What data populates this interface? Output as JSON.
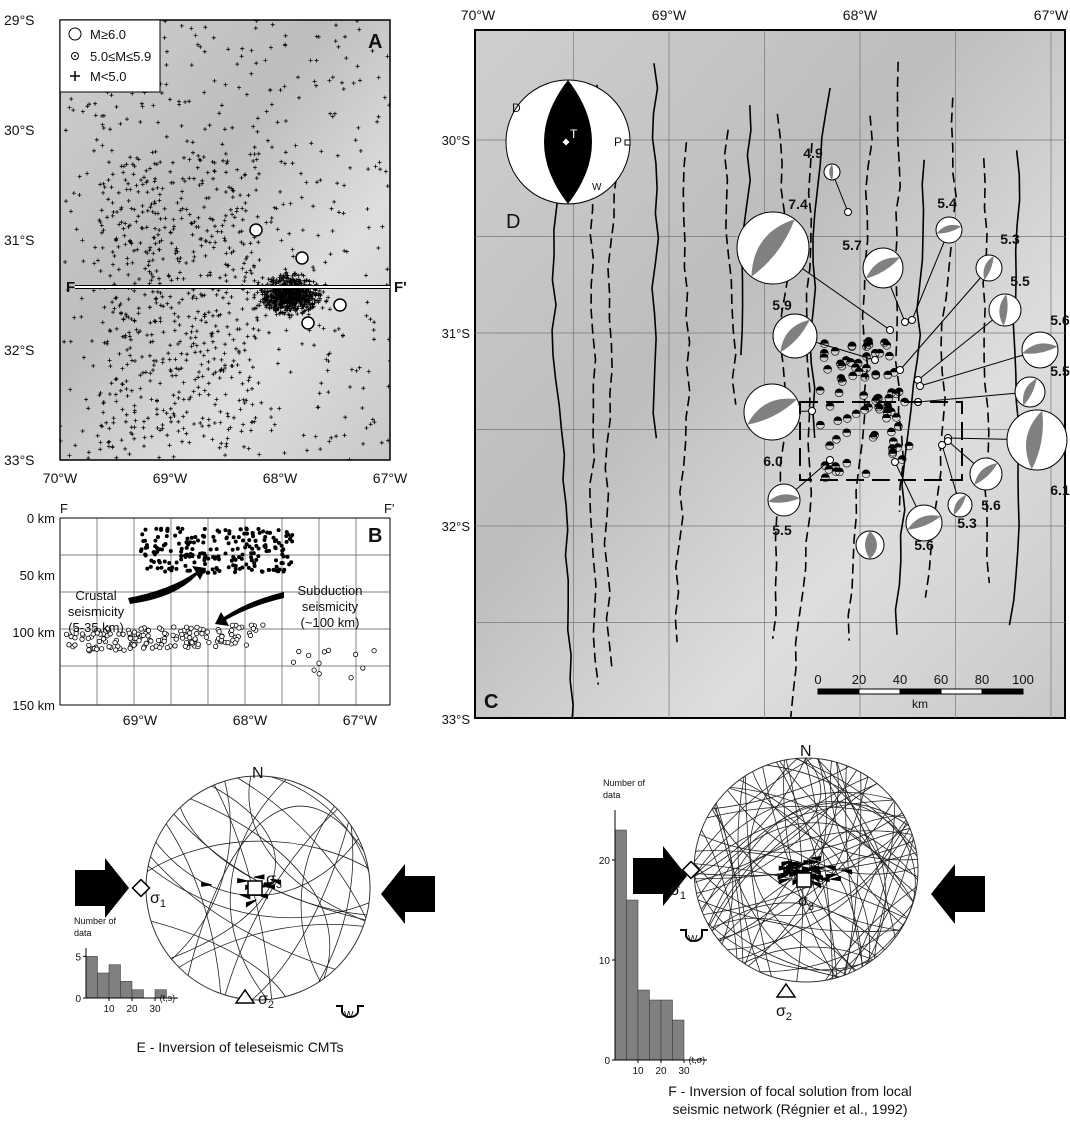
{
  "panel_a": {
    "label": "A",
    "lat_labels": [
      "29°S",
      "30°S",
      "31°S",
      "32°S",
      "33°S"
    ],
    "lon_labels": [
      "70°W",
      "69°W",
      "68°W",
      "67°W"
    ],
    "legend": [
      "M≥6.0",
      "5.0≤M≤5.9",
      "M<5.0"
    ],
    "section_start": "F",
    "section_end": "F'"
  },
  "panel_b": {
    "label": "B",
    "section_start": "F",
    "section_end": "F'",
    "depth_labels": [
      "0 km",
      "50 km",
      "100 km",
      "150 km"
    ],
    "lon_labels": [
      "69°W",
      "68°W",
      "67°W"
    ],
    "annotations": [
      [
        "Crustal",
        "seismicity",
        "(5-35 km)"
      ],
      [
        "Subduction",
        "seismicity",
        "(~100 km)"
      ]
    ]
  },
  "panel_c": {
    "label": "C",
    "lon_labels": [
      "70°W",
      "69°W",
      "68°W",
      "67°W"
    ],
    "lat_labels": [
      "30°S",
      "31°S",
      "32°S",
      "33°S"
    ],
    "inset_labels": {
      "d": "D",
      "t": "T",
      "p": "P",
      "w": "W"
    },
    "map_label": "D",
    "magnitudes": [
      "4.9",
      "7.4",
      "5.4",
      "5.3",
      "5.7",
      "5.5",
      "5.9",
      "5.6",
      "5.5",
      "6.0",
      "6.1",
      "5.6",
      "5.5",
      "5.3",
      "5.6"
    ],
    "scale_ticks": [
      "0",
      "20",
      "40",
      "60",
      "80",
      "100"
    ],
    "scale_unit": "km"
  },
  "panel_e": {
    "north": "N",
    "sigma1": {
      "symbol": "σ",
      "sub": "1"
    },
    "sigma2": {
      "symbol": "σ",
      "sub": "2"
    },
    "sigma3": {
      "symbol": "σ",
      "sub": "3"
    },
    "w_symbol": "W",
    "histogram": {
      "y_title": [
        "Number of",
        "data"
      ],
      "bins": [
        0,
        5,
        10,
        15,
        20,
        25,
        30,
        35
      ],
      "counts": [
        5,
        3,
        4,
        2,
        1,
        0,
        1
      ],
      "xlim": [
        0,
        40
      ],
      "ylim": [
        0,
        6
      ],
      "xticks": [
        10,
        20,
        30
      ],
      "yticks": [
        0,
        5
      ],
      "x_title": "(t,s)",
      "color": "#808080"
    },
    "caption": [
      "E - Inversion of teleseismic CMTs"
    ]
  },
  "panel_f": {
    "north": "N",
    "sigma1": {
      "symbol": "σ",
      "sub": "1"
    },
    "sigma2": {
      "symbol": "σ",
      "sub": "2"
    },
    "sigma3": {
      "symbol": "σ",
      "sub": "3"
    },
    "w_symbol": "W",
    "histogram": {
      "y_title": [
        "Number of",
        "data"
      ],
      "bins": [
        0,
        5,
        10,
        15,
        20,
        25,
        30
      ],
      "counts": [
        23,
        16,
        7,
        6,
        6,
        4
      ],
      "xlim": [
        0,
        40
      ],
      "ylim": [
        0,
        25
      ],
      "xticks": [
        10,
        20,
        30
      ],
      "yticks": [
        0,
        10,
        20
      ],
      "x_title": "(t,σ)",
      "color": "#808080"
    },
    "caption": [
      "F - Inversion of focal solution from local",
      "seismic network (Régnier et al., 1992)"
    ]
  }
}
